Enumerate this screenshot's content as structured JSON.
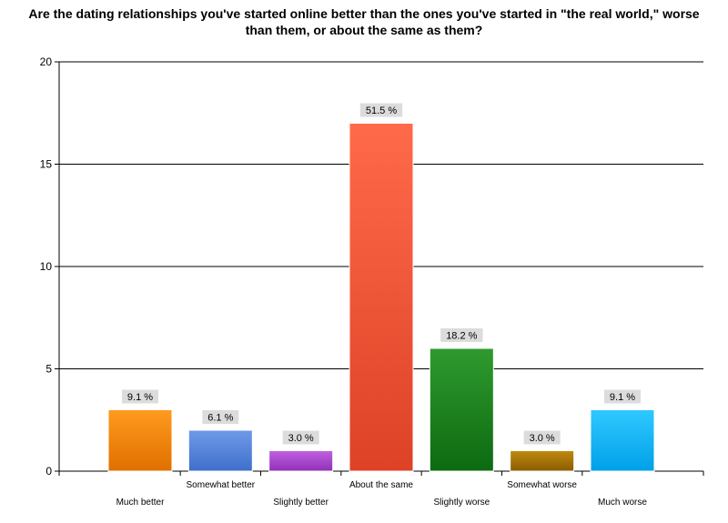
{
  "chart_data": {
    "type": "bar",
    "title": "Are the dating relationships you've started online better than the ones you've started in \"the real world,\" worse than them, or about the same as them?",
    "categories": [
      "Much better",
      "Somewhat better",
      "Slightly better",
      "About the same",
      "Slightly worse",
      "Somewhat worse",
      "Much worse"
    ],
    "values": [
      3,
      2,
      1,
      17,
      6,
      1,
      3
    ],
    "data_labels": [
      "9.1 %",
      "6.1 %",
      "3.0 %",
      "51.5 %",
      "18.2 %",
      "3.0 %",
      "9.1 %"
    ],
    "ylim": [
      0,
      20
    ],
    "yticks": [
      0,
      5,
      10,
      15,
      20
    ],
    "grid": true,
    "colors": [
      [
        "#ff9a1f",
        "#e07000"
      ],
      [
        "#6f9ae8",
        "#3f6fcc"
      ],
      [
        "#c060e0",
        "#9030b8"
      ],
      [
        "#ff6a4a",
        "#dd4226"
      ],
      [
        "#2f9a2f",
        "#0d6a10"
      ],
      [
        "#c08a10",
        "#8a5c00"
      ],
      [
        "#30c8ff",
        "#00a0e8"
      ]
    ]
  }
}
